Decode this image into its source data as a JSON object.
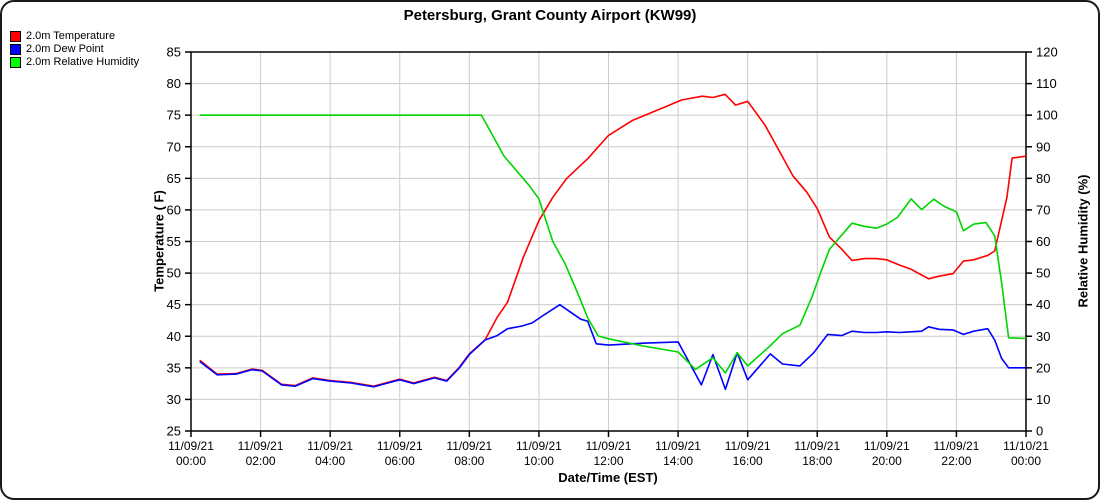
{
  "window": {
    "background": "#ffffff",
    "border_color": "#1a1a1a"
  },
  "header": {
    "title": "Petersburg, Grant County Airport (KW99)"
  },
  "legend": {
    "position": "top-left",
    "items": [
      {
        "label": "2.0m Temperature",
        "color": "#ff0000"
      },
      {
        "label": "2.0m Dew Point",
        "color": "#0000ff"
      },
      {
        "label": "2.0m Relative Humidity",
        "color": "#00ff00"
      }
    ]
  },
  "chart_data": {
    "type": "line",
    "title": "Petersburg, Grant County Airport (KW99)",
    "grid": true,
    "gridline_color": "#cccccc",
    "frame_color": "#000000",
    "legend_position": "top-left",
    "x_axis": {
      "label": "Date/Time (EST)",
      "range_hours": [
        0,
        24
      ],
      "tick_interval_hours": 2,
      "ticks": [
        {
          "h": 0,
          "date": "11/09/21",
          "time": "00:00"
        },
        {
          "h": 2,
          "date": "11/09/21",
          "time": "02:00"
        },
        {
          "h": 4,
          "date": "11/09/21",
          "time": "04:00"
        },
        {
          "h": 6,
          "date": "11/09/21",
          "time": "06:00"
        },
        {
          "h": 8,
          "date": "11/09/21",
          "time": "08:00"
        },
        {
          "h": 10,
          "date": "11/09/21",
          "time": "10:00"
        },
        {
          "h": 12,
          "date": "11/09/21",
          "time": "12:00"
        },
        {
          "h": 14,
          "date": "11/09/21",
          "time": "14:00"
        },
        {
          "h": 16,
          "date": "11/09/21",
          "time": "16:00"
        },
        {
          "h": 18,
          "date": "11/09/21",
          "time": "18:00"
        },
        {
          "h": 20,
          "date": "11/09/21",
          "time": "20:00"
        },
        {
          "h": 22,
          "date": "11/09/21",
          "time": "22:00"
        },
        {
          "h": 24,
          "date": "11/10/21",
          "time": "00:00"
        }
      ]
    },
    "y_axis_left": {
      "label": "Temperature ( F)",
      "range": [
        25,
        85
      ],
      "tick_step": 5,
      "ticks": [
        25,
        30,
        35,
        40,
        45,
        50,
        55,
        60,
        65,
        70,
        75,
        80,
        85
      ]
    },
    "y_axis_right": {
      "label": "Relative Humidity (%)",
      "range": [
        0,
        120
      ],
      "tick_step": 10,
      "ticks": [
        0,
        10,
        20,
        30,
        40,
        50,
        60,
        70,
        80,
        90,
        100,
        110,
        120
      ]
    },
    "series": [
      {
        "name": "2.0m Temperature",
        "axis": "left",
        "color": "#ff0000",
        "width": 1.6,
        "points": [
          [
            0.25,
            36.2
          ],
          [
            0.75,
            34.0
          ],
          [
            1.3,
            34.1
          ],
          [
            1.75,
            34.8
          ],
          [
            2.05,
            34.6
          ],
          [
            2.6,
            32.4
          ],
          [
            3.0,
            32.2
          ],
          [
            3.5,
            33.4
          ],
          [
            4.0,
            33.0
          ],
          [
            4.6,
            32.7
          ],
          [
            5.25,
            32.1
          ],
          [
            6.0,
            33.2
          ],
          [
            6.4,
            32.6
          ],
          [
            7.0,
            33.5
          ],
          [
            7.35,
            33.0
          ],
          [
            7.7,
            35.0
          ],
          [
            8.0,
            37.2
          ],
          [
            8.45,
            39.4
          ],
          [
            8.8,
            43.0
          ],
          [
            9.1,
            45.4
          ],
          [
            9.55,
            52.5
          ],
          [
            10.0,
            58.3
          ],
          [
            10.4,
            62.0
          ],
          [
            10.8,
            65.0
          ],
          [
            11.4,
            68.1
          ],
          [
            12.0,
            71.8
          ],
          [
            12.7,
            74.2
          ],
          [
            13.5,
            76.0
          ],
          [
            14.1,
            77.4
          ],
          [
            14.7,
            78.0
          ],
          [
            15.0,
            77.8
          ],
          [
            15.35,
            78.3
          ],
          [
            15.65,
            76.6
          ],
          [
            16.0,
            77.2
          ],
          [
            16.5,
            73.4
          ],
          [
            16.9,
            69.4
          ],
          [
            17.3,
            65.4
          ],
          [
            17.7,
            62.8
          ],
          [
            18.0,
            60.2
          ],
          [
            18.35,
            55.7
          ],
          [
            18.7,
            53.8
          ],
          [
            19.0,
            52.0
          ],
          [
            19.35,
            52.3
          ],
          [
            19.7,
            52.3
          ],
          [
            20.0,
            52.1
          ],
          [
            20.35,
            51.3
          ],
          [
            20.7,
            50.6
          ],
          [
            21.0,
            49.7
          ],
          [
            21.2,
            49.1
          ],
          [
            21.5,
            49.5
          ],
          [
            21.9,
            49.9
          ],
          [
            22.2,
            51.9
          ],
          [
            22.5,
            52.1
          ],
          [
            22.9,
            52.8
          ],
          [
            23.1,
            53.5
          ],
          [
            23.45,
            62.0
          ],
          [
            23.6,
            68.2
          ],
          [
            24.0,
            68.5
          ]
        ]
      },
      {
        "name": "2.0m Dew Point",
        "axis": "left",
        "color": "#0000ff",
        "width": 1.6,
        "points": [
          [
            0.25,
            36.0
          ],
          [
            0.75,
            33.9
          ],
          [
            1.3,
            34.0
          ],
          [
            1.75,
            34.7
          ],
          [
            2.05,
            34.5
          ],
          [
            2.6,
            32.3
          ],
          [
            3.0,
            32.1
          ],
          [
            3.5,
            33.3
          ],
          [
            4.0,
            32.9
          ],
          [
            4.6,
            32.6
          ],
          [
            5.25,
            32.0
          ],
          [
            6.0,
            33.1
          ],
          [
            6.4,
            32.5
          ],
          [
            7.0,
            33.4
          ],
          [
            7.35,
            32.9
          ],
          [
            7.7,
            34.9
          ],
          [
            8.0,
            37.1
          ],
          [
            8.45,
            39.4
          ],
          [
            8.8,
            40.1
          ],
          [
            9.1,
            41.2
          ],
          [
            9.5,
            41.6
          ],
          [
            9.8,
            42.1
          ],
          [
            10.1,
            43.2
          ],
          [
            10.6,
            45.0
          ],
          [
            11.2,
            42.7
          ],
          [
            11.4,
            42.4
          ],
          [
            11.65,
            38.8
          ],
          [
            12.0,
            38.6
          ],
          [
            13.0,
            38.9
          ],
          [
            14.0,
            39.1
          ],
          [
            14.67,
            32.3
          ],
          [
            15.0,
            37.1
          ],
          [
            15.36,
            31.6
          ],
          [
            15.7,
            37.4
          ],
          [
            16.0,
            33.1
          ],
          [
            16.65,
            37.2
          ],
          [
            17.0,
            35.6
          ],
          [
            17.5,
            35.3
          ],
          [
            17.9,
            37.4
          ],
          [
            18.3,
            40.3
          ],
          [
            18.7,
            40.1
          ],
          [
            19.0,
            40.8
          ],
          [
            19.35,
            40.6
          ],
          [
            19.7,
            40.6
          ],
          [
            20.0,
            40.7
          ],
          [
            20.35,
            40.6
          ],
          [
            20.7,
            40.7
          ],
          [
            21.0,
            40.8
          ],
          [
            21.2,
            41.5
          ],
          [
            21.5,
            41.1
          ],
          [
            21.9,
            41.0
          ],
          [
            22.2,
            40.3
          ],
          [
            22.5,
            40.8
          ],
          [
            22.9,
            41.2
          ],
          [
            23.1,
            39.4
          ],
          [
            23.3,
            36.5
          ],
          [
            23.5,
            35.0
          ],
          [
            24.0,
            35.0
          ]
        ]
      },
      {
        "name": "2.0m Relative Humidity",
        "axis": "right",
        "color": "#00d500",
        "width": 1.6,
        "points": [
          [
            0.25,
            100
          ],
          [
            8.35,
            100
          ],
          [
            9.0,
            87
          ],
          [
            9.7,
            78
          ],
          [
            10.0,
            73.5
          ],
          [
            10.4,
            60
          ],
          [
            10.75,
            53
          ],
          [
            11.1,
            44
          ],
          [
            11.4,
            35.9
          ],
          [
            11.7,
            30.1
          ],
          [
            12.0,
            29.2
          ],
          [
            13.0,
            26.9
          ],
          [
            14.0,
            25.0
          ],
          [
            14.5,
            19.5
          ],
          [
            15.0,
            23.2
          ],
          [
            15.36,
            18.4
          ],
          [
            15.7,
            24.8
          ],
          [
            16.0,
            20.6
          ],
          [
            16.65,
            27.0
          ],
          [
            17.0,
            30.8
          ],
          [
            17.5,
            33.5
          ],
          [
            17.84,
            42.2
          ],
          [
            18.1,
            50.2
          ],
          [
            18.35,
            57.5
          ],
          [
            19.0,
            65.8
          ],
          [
            19.35,
            64.8
          ],
          [
            19.7,
            64.2
          ],
          [
            20.0,
            65.5
          ],
          [
            20.3,
            67.6
          ],
          [
            20.7,
            73.5
          ],
          [
            21.0,
            70.1
          ],
          [
            21.35,
            73.4
          ],
          [
            21.65,
            71.1
          ],
          [
            22.0,
            69.4
          ],
          [
            22.2,
            63.4
          ],
          [
            22.5,
            65.5
          ],
          [
            22.85,
            66.0
          ],
          [
            23.1,
            61.8
          ],
          [
            23.3,
            47.0
          ],
          [
            23.5,
            29.5
          ],
          [
            24.0,
            29.3
          ]
        ]
      }
    ]
  }
}
